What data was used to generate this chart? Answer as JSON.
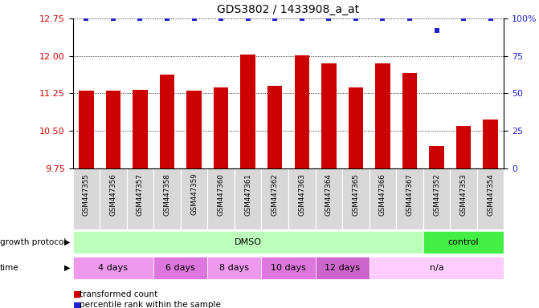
{
  "title": "GDS3802 / 1433908_a_at",
  "samples": [
    "GSM447355",
    "GSM447356",
    "GSM447357",
    "GSM447358",
    "GSM447359",
    "GSM447360",
    "GSM447361",
    "GSM447362",
    "GSM447363",
    "GSM447364",
    "GSM447365",
    "GSM447366",
    "GSM447367",
    "GSM447352",
    "GSM447353",
    "GSM447354"
  ],
  "bar_values": [
    11.3,
    11.3,
    11.32,
    11.62,
    11.3,
    11.37,
    12.02,
    11.4,
    12.01,
    11.85,
    11.37,
    11.85,
    11.65,
    10.2,
    10.6,
    10.72
  ],
  "percentile_values": [
    100,
    100,
    100,
    100,
    100,
    100,
    100,
    100,
    100,
    100,
    100,
    100,
    100,
    92,
    100,
    100
  ],
  "bar_color": "#cc0000",
  "percentile_color": "#2222cc",
  "ylim_left": [
    9.75,
    12.75
  ],
  "yticks_left": [
    9.75,
    10.5,
    11.25,
    12.0,
    12.75
  ],
  "ylim_right": [
    0,
    100
  ],
  "yticks_right": [
    0,
    25,
    50,
    75,
    100
  ],
  "growth_protocol_labels": [
    "DMSO",
    "control"
  ],
  "growth_protocol_colors": [
    "#bbffbb",
    "#44ee44"
  ],
  "growth_protocol_spans_samples": [
    13,
    3
  ],
  "time_labels": [
    "4 days",
    "6 days",
    "8 days",
    "10 days",
    "12 days",
    "n/a"
  ],
  "time_colors_dmso": "#dd88dd",
  "time_color_na": "#ffccff",
  "time_spans_samples": [
    3,
    2,
    2,
    2,
    2,
    5
  ],
  "legend_red": "transformed count",
  "legend_blue": "percentile rank within the sample",
  "bg_color": "#ffffff",
  "plot_bg": "#ffffff",
  "xticklabel_bg": "#d8d8d8",
  "left_label_color": "#000000",
  "title_fontsize": 10,
  "bar_width": 0.55
}
